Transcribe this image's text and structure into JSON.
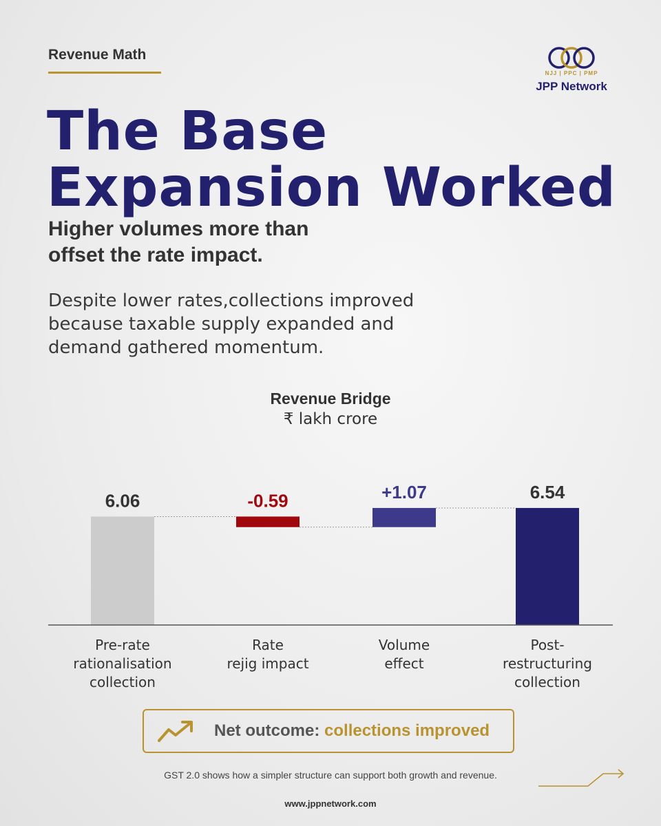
{
  "header": {
    "section_tag": "Revenue Math"
  },
  "logo": {
    "monogram": "JPP",
    "sub": "NJJ | PPC | PMP",
    "name": "JPP Network"
  },
  "headline": {
    "line1": "The Base",
    "line2": "Expansion Worked"
  },
  "subhead": {
    "line1": "Higher volumes more than",
    "line2": "offset the rate impact."
  },
  "body": {
    "line1": "Despite lower rates,collections improved",
    "line2": "because taxable supply expanded and",
    "line3": "demand gathered momentum."
  },
  "chart_data": {
    "type": "bar",
    "title": "Revenue Bridge",
    "unit": "₹ lakh crore",
    "categories": [
      [
        "Pre-rate",
        "rationalisation",
        "collection"
      ],
      [
        "Rate",
        "rejig impact"
      ],
      [
        "Volume",
        "effect"
      ],
      [
        "Post-",
        "restructuring",
        "collection"
      ]
    ],
    "values": [
      6.06,
      -0.59,
      1.07,
      6.54
    ],
    "labels": [
      "6.06",
      "-0.59",
      "+1.07",
      "6.54"
    ],
    "kinds": [
      "total",
      "delta",
      "delta",
      "total"
    ],
    "colors": [
      "#cccccc",
      "#a1080e",
      "#3d3a8c",
      "#23206e"
    ],
    "label_colors": [
      "#333333",
      "#a1080e",
      "#3d3a8c",
      "#333333"
    ]
  },
  "outcome": {
    "prefix": "Net outcome: ",
    "highlight": "collections improved",
    "icon": "trend-up-icon"
  },
  "footnote": "GST 2.0 shows how a simpler structure can support both growth and revenue.",
  "website": "www.jppnetwork.com",
  "colors": {
    "navy": "#23206e",
    "gold": "#b8932f"
  }
}
